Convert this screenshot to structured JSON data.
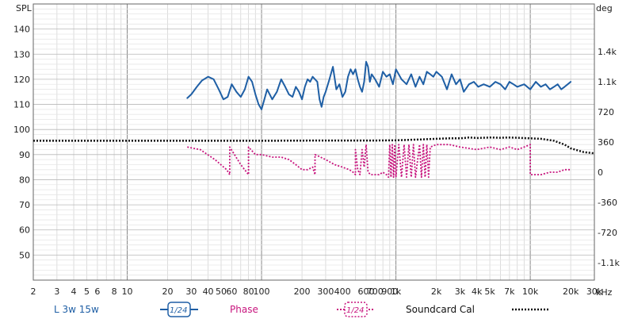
{
  "chart_data": {
    "type": "line",
    "title": "",
    "xlabel": "",
    "x_unit": "kHz",
    "x_scale": "log",
    "xlim": [
      2,
      30000
    ],
    "x_ticks": [
      {
        "v": 2,
        "label": "2"
      },
      {
        "v": 3,
        "label": "3"
      },
      {
        "v": 4,
        "label": "4"
      },
      {
        "v": 5,
        "label": "5"
      },
      {
        "v": 6,
        "label": "6"
      },
      {
        "v": 8,
        "label": "8"
      },
      {
        "v": 10,
        "label": "10"
      },
      {
        "v": 20,
        "label": "20"
      },
      {
        "v": 30,
        "label": "30"
      },
      {
        "v": 40,
        "label": "40"
      },
      {
        "v": 50,
        "label": "50"
      },
      {
        "v": 60,
        "label": "60"
      },
      {
        "v": 80,
        "label": "80"
      },
      {
        "v": 100,
        "label": "100"
      },
      {
        "v": 200,
        "label": "200"
      },
      {
        "v": 300,
        "label": "300"
      },
      {
        "v": 400,
        "label": "400"
      },
      {
        "v": 600,
        "label": "600"
      },
      {
        "v": 700,
        "label": "700"
      },
      {
        "v": 900,
        "label": "900"
      },
      {
        "v": 1000,
        "label": "1k"
      },
      {
        "v": 2000,
        "label": "2k"
      },
      {
        "v": 3000,
        "label": "3k"
      },
      {
        "v": 4000,
        "label": "4k"
      },
      {
        "v": 5000,
        "label": "5k"
      },
      {
        "v": 7000,
        "label": "7k"
      },
      {
        "v": 10000,
        "label": "10k"
      },
      {
        "v": 20000,
        "label": "20k"
      },
      {
        "v": 30000,
        "label": "30k"
      }
    ],
    "ylabel_left": "SPL",
    "ylim_left": [
      40,
      150
    ],
    "y_ticks_left": [
      50,
      60,
      70,
      80,
      90,
      100,
      110,
      120,
      130,
      140
    ],
    "ylabel_right": "deg",
    "y_ticks_right": [
      {
        "label": "1.4k",
        "spl": 131
      },
      {
        "label": "1.1k",
        "spl": 119
      },
      {
        "label": "720",
        "spl": 107
      },
      {
        "label": "360",
        "spl": 95
      },
      {
        "label": "0",
        "spl": 83
      },
      {
        "label": "-360",
        "spl": 71
      },
      {
        "label": "-720",
        "spl": 59
      },
      {
        "label": "-1.1k",
        "spl": 47
      }
    ],
    "grid": true,
    "legend_position": "bottom",
    "series": [
      {
        "name": "L 3w 15w",
        "smoothing": "1/24",
        "color": "#1f5fa5",
        "style": "solid",
        "x": [
          28,
          30,
          33,
          36,
          40,
          44,
          48,
          52,
          56,
          60,
          65,
          70,
          75,
          80,
          85,
          90,
          95,
          100,
          105,
          110,
          120,
          130,
          140,
          150,
          160,
          170,
          180,
          190,
          200,
          210,
          220,
          230,
          240,
          250,
          260,
          270,
          280,
          290,
          300,
          320,
          340,
          360,
          380,
          400,
          420,
          440,
          460,
          480,
          500,
          520,
          540,
          560,
          580,
          600,
          620,
          640,
          660,
          700,
          750,
          800,
          850,
          900,
          950,
          1000,
          1100,
          1200,
          1300,
          1400,
          1500,
          1600,
          1700,
          1800,
          1900,
          2000,
          2200,
          2400,
          2600,
          2800,
          3000,
          3200,
          3500,
          3800,
          4100,
          4500,
          5000,
          5500,
          6000,
          6500,
          7000,
          7500,
          8000,
          9000,
          10000,
          11000,
          12000,
          13000,
          14000,
          15000,
          16000,
          17000,
          18000,
          19000,
          20000
        ],
        "y": [
          112.5,
          114,
          117,
          119.5,
          121,
          120,
          116,
          112,
          113,
          118,
          115,
          113,
          116,
          121,
          119,
          114,
          110,
          108,
          112,
          116,
          112,
          115,
          120,
          117,
          114,
          113,
          117,
          115,
          112,
          117,
          120,
          119,
          121,
          120,
          119,
          112,
          109,
          113,
          115,
          120,
          125,
          116,
          118,
          113,
          115,
          121,
          124,
          122,
          124,
          120,
          117,
          115,
          119,
          127,
          125,
          119,
          122,
          120,
          117,
          123,
          121,
          122,
          118,
          124,
          120,
          118,
          122,
          117,
          121,
          118,
          123,
          122,
          121,
          123,
          121,
          116,
          122,
          118,
          120,
          115,
          118,
          119,
          117,
          118,
          117,
          119,
          118,
          116,
          119,
          118,
          117,
          118,
          116,
          119,
          117,
          118,
          116,
          117,
          118,
          116,
          117,
          118,
          119
        ]
      },
      {
        "name": "Phase",
        "smoothing": "1/24",
        "color": "#c8157e",
        "style": "dotted",
        "x": [
          28,
          35,
          45,
          55,
          58,
          58,
          70,
          80,
          80,
          90,
          100,
          120,
          140,
          160,
          180,
          200,
          220,
          240,
          250,
          250,
          300,
          350,
          400,
          450,
          480,
          500,
          500,
          520,
          540,
          560,
          580,
          600,
          620,
          650,
          700,
          750,
          800,
          850,
          880,
          900,
          920,
          940,
          960,
          980,
          1000,
          1050,
          1100,
          1150,
          1200,
          1250,
          1300,
          1350,
          1400,
          1500,
          1550,
          1600,
          1650,
          1700,
          1750,
          1800,
          2000,
          2500,
          3000,
          4000,
          5000,
          6000,
          7000,
          8000,
          9000,
          10000,
          10000,
          12000,
          14000,
          16000,
          18000,
          20000
        ],
        "y": [
          93,
          92,
          88,
          84,
          82,
          93,
          86,
          82,
          93,
          90,
          90,
          89,
          89,
          88,
          86,
          84,
          84,
          85,
          82,
          90,
          88,
          86,
          85,
          84,
          83,
          82,
          92,
          84,
          82,
          92,
          85,
          94,
          83,
          82,
          82,
          82,
          83,
          82,
          81,
          94,
          81,
          94,
          81,
          94,
          81,
          94,
          81,
          94,
          81,
          94,
          81,
          94,
          81,
          94,
          81,
          94,
          81,
          94,
          81,
          93,
          94,
          94,
          93,
          92,
          93,
          92,
          93,
          92,
          93,
          94,
          82,
          82,
          83,
          83,
          84,
          84
        ]
      },
      {
        "name": "Soundcard Cal",
        "color": "#111111",
        "style": "dotted",
        "x": [
          2,
          10,
          50,
          100,
          300,
          700,
          1000,
          1500,
          2000,
          2500,
          3000,
          3500,
          4000,
          5000,
          6000,
          7000,
          8000,
          10000,
          12000,
          15000,
          18000,
          20000,
          25000,
          30000
        ],
        "y": [
          95.5,
          95.5,
          95.5,
          95.5,
          95.6,
          95.6,
          95.7,
          96,
          96.3,
          96.5,
          96.5,
          96.8,
          96.6,
          96.8,
          96.7,
          96.8,
          96.7,
          96.5,
          96.3,
          95.5,
          94,
          92.5,
          91,
          90.5
        ]
      }
    ],
    "legend": {
      "series1_label": "L 3w 15w",
      "series1_smoothing": "1/24",
      "series2_label": "Phase",
      "series2_smoothing": "1/24",
      "series3_label": "Soundcard Cal"
    }
  }
}
